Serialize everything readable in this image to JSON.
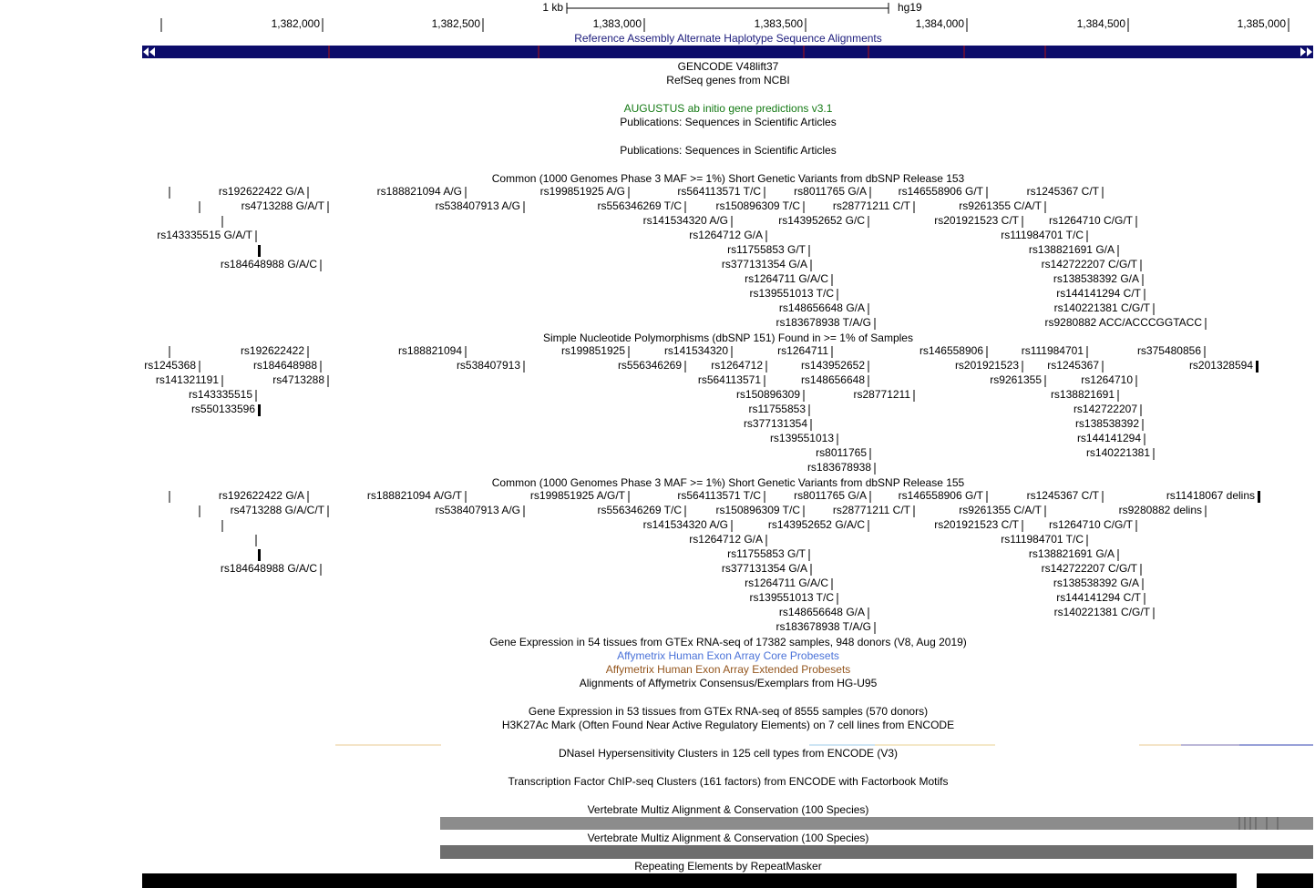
{
  "ruler": {
    "scale": "1 kb",
    "assembly": "hg19",
    "ticks": [
      "1,382,000",
      "1,382,500",
      "1,383,000",
      "1,383,500",
      "1,384,000",
      "1,384,500",
      "1,385,000"
    ]
  },
  "tracks": [
    {
      "title": "Reference Assembly Alternate Haplotype Sequence Alignments",
      "color": "#1c1c7c"
    },
    {
      "title": "GENCODE V48lift37",
      "color": "#000000"
    },
    {
      "title": "RefSeq genes from NCBI",
      "color": "#000000"
    },
    {
      "title": "AUGUSTUS ab initio gene predictions v3.1",
      "color": "#157a15"
    },
    {
      "title": "Publications: Sequences in Scientific Articles",
      "color": "#000000"
    },
    {
      "title": "Publications: Sequences in Scientific Articles",
      "color": "#000000"
    },
    {
      "title": "Common (1000 Genomes Phase 3 MAF >= 1%) Short Genetic Variants from dbSNP Release 153",
      "color": "#000000",
      "items": [
        "rs192622422 G/A",
        "rs188821094 A/G",
        "rs199851925 A/G",
        "rs564113571 T/C",
        "rs8011765 G/A",
        "rs146558906 G/T",
        "rs1245367 C/T",
        "rs4713288 G/A/T",
        "rs538407913 A/G",
        "rs556346269 T/C",
        "rs150896309 T/C",
        "rs28771211 C/T",
        "rs9261355 C/A/T",
        "rs141534320 A/G",
        "rs143952652 G/C",
        "rs201921523 C/T",
        "rs1264710 C/G/T",
        "rs143335515 G/A/T",
        "rs1264712 G/A",
        "rs111984701 T/C",
        "rs11755853 G/T",
        "rs138821691 G/A",
        "rs184648988 G/A/C",
        "rs377131354 G/A",
        "rs142722207 C/G/T",
        "rs1264711 G/A/C",
        "rs138538392 G/A",
        "rs139551013 T/C",
        "rs144141294 C/T",
        "rs148656648 G/A",
        "rs140221381 C/G/T",
        "rs183678938 T/A/G",
        "rs9280882 ACC/ACCCGGTACC"
      ]
    },
    {
      "title": "Simple Nucleotide Polymorphisms (dbSNP 151) Found in >= 1% of Samples",
      "color": "#000000",
      "items": [
        "rs192622422",
        "rs188821094",
        "rs199851925",
        "rs141534320",
        "rs1264711",
        "rs146558906",
        "rs111984701",
        "rs375480856",
        "rs1245368",
        "rs184648988",
        "rs538407913",
        "rs556346269",
        "rs1264712",
        "rs143952652",
        "rs201921523",
        "rs1245367",
        "rs201328594",
        "rs141321191",
        "rs4713288",
        "rs564113571",
        "rs148656648",
        "rs9261355",
        "rs1264710",
        "rs143335515",
        "rs150896309",
        "rs28771211",
        "rs138821691",
        "rs550133596",
        "rs11755853",
        "rs142722207",
        "rs377131354",
        "rs138538392",
        "rs139551013",
        "rs144141294",
        "rs8011765",
        "rs140221381",
        "rs183678938"
      ]
    },
    {
      "title": "Common (1000 Genomes Phase 3 MAF >= 1%) Short Genetic Variants from dbSNP Release 155",
      "color": "#000000",
      "items": [
        "rs192622422 G/A",
        "rs188821094 A/G/T",
        "rs199851925 A/G/T",
        "rs564113571 T/C",
        "rs8011765 G/A",
        "rs146558906 G/T",
        "rs1245367 C/T",
        "rs11418067 delins",
        "rs4713288 G/A/C/T",
        "rs538407913 A/G",
        "rs556346269 T/C",
        "rs150896309 T/C",
        "rs28771211 C/T",
        "rs9261355 C/A/T",
        "rs9280882 delins",
        "rs141534320 A/G",
        "rs143952652 G/A/C",
        "rs201921523 C/T",
        "rs1264710 C/G/T",
        "rs1264712 G/A",
        "rs111984701 T/C",
        "rs11755853 G/T",
        "rs138821691 G/A",
        "rs184648988 G/A/C",
        "rs377131354 G/A",
        "rs142722207 C/G/T",
        "rs1264711 G/A/C",
        "rs138538392 G/A",
        "rs139551013 T/C",
        "rs144141294 C/T",
        "rs148656648 G/A",
        "rs140221381 C/G/T",
        "rs183678938 T/A/G"
      ]
    },
    {
      "title": "Gene Expression in 54 tissues from GTEx RNA-seq of 17382 samples, 948 donors (V8, Aug 2019)",
      "color": "#000000"
    },
    {
      "title": "Affymetrix Human Exon Array Core Probesets",
      "color": "#4a72d8"
    },
    {
      "title": "Affymetrix Human Exon Array Extended Probesets",
      "color": "#94561e"
    },
    {
      "title": "Alignments of Affymetrix Consensus/Exemplars from HG-U95",
      "color": "#000000"
    },
    {
      "title": "Gene Expression in 53 tissues from GTEx RNA-seq of 8555 samples (570 donors)",
      "color": "#000000"
    },
    {
      "title": "H3K27Ac Mark (Often Found Near Active Regulatory Elements) on 7 cell lines from ENCODE",
      "color": "#000000"
    },
    {
      "title": "DNaseI Hypersensitivity Clusters in 125 cell types from ENCODE (V3)",
      "color": "#000000"
    },
    {
      "title": "Transcription Factor ChIP-seq Clusters (161 factors) from ENCODE with Factorbook Motifs",
      "color": "#000000"
    },
    {
      "title": "Vertebrate Multiz Alignment & Conservation (100 Species)",
      "color": "#000000"
    },
    {
      "title": "Vertebrate Multiz Alignment & Conservation (100 Species)",
      "color": "#000000"
    },
    {
      "title": "Repeating Elements by RepeatMasker",
      "color": "#000000"
    }
  ]
}
